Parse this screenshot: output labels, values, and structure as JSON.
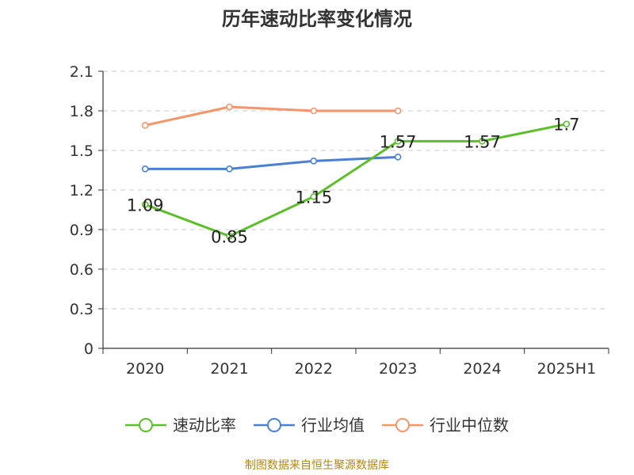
{
  "title": "历年速动比率变化情况",
  "source_note": "制图数据来自恒生聚源数据库",
  "chart_data": {
    "type": "line",
    "title": "历年速动比率变化情况",
    "categories": [
      "2020",
      "2021",
      "2022",
      "2023",
      "2024",
      "2025H1"
    ],
    "y_ticks": [
      "0",
      "0.3",
      "0.6",
      "0.9",
      "1.2",
      "1.5",
      "1.8",
      "2.1"
    ],
    "ylim": [
      0,
      2.1
    ],
    "y_tick_step": 0.3,
    "grid": true,
    "grid_style": "dashed",
    "legend_position": "bottom",
    "series": [
      {
        "name": "速动比率",
        "color": "#5cbf2a",
        "values": [
          1.09,
          0.85,
          1.15,
          1.57,
          1.57,
          1.7
        ],
        "data_labels": [
          "1.09",
          "0.85",
          "1.15",
          "1.57",
          "1.57",
          "1.7"
        ]
      },
      {
        "name": "行业均值",
        "color": "#4a7fd4",
        "values": [
          1.36,
          1.36,
          1.42,
          1.45,
          null,
          null
        ]
      },
      {
        "name": "行业中位数",
        "color": "#f4956a",
        "values": [
          1.69,
          1.83,
          1.8,
          1.8,
          null,
          null
        ]
      }
    ]
  }
}
